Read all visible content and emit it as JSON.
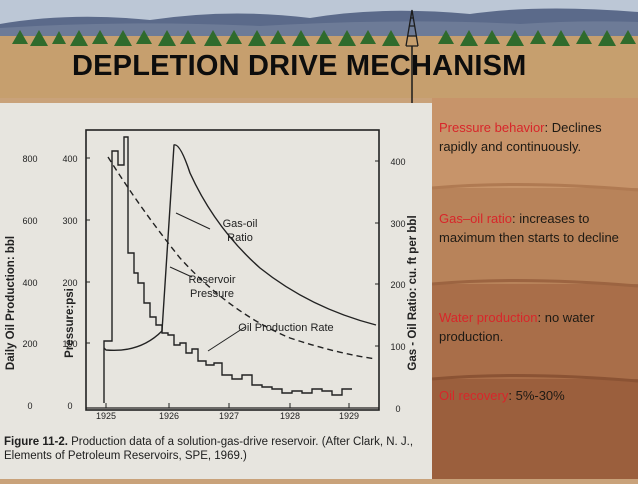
{
  "slide": {
    "title": "DEPLETION DRIVE MECHANISM",
    "colors": {
      "sky": "#bcc7d6",
      "background": "#c9a27a",
      "key_text": "#d8262a",
      "body_text": "#1e1a14"
    }
  },
  "figure": {
    "caption_label": "Figure 11-2.",
    "caption_text": "Production data of a solution-gas-drive reservoir. (After Clark, N. J., Elements of Petroleum Reservoirs, SPE, 1969.)",
    "left_outer_axis_label": "Daily Oil Production: bbl",
    "left_inner_axis_label": "Pressure:psi",
    "right_axis_label": "Gas - Oil Ratio: cu. ft per bbl",
    "curve_labels": {
      "gor": [
        "Gas-oil",
        "Ratio"
      ],
      "pressure": [
        "Reservoir",
        "Pressure"
      ],
      "oil": "Oil Production Rate"
    },
    "left_outer_ticks": [
      "800",
      "600",
      "400",
      "200",
      "0"
    ],
    "left_inner_ticks": [
      "400",
      "300",
      "200",
      "100",
      "0"
    ],
    "right_ticks": [
      "400",
      "300",
      "200",
      "100",
      "0"
    ],
    "x_ticks": [
      "1925",
      "1926",
      "1927",
      "1928",
      "1929"
    ]
  },
  "bullets": [
    {
      "key": "Pressure behavior",
      "text": ": Declines rapidly and continuously."
    },
    {
      "key": "Gas–oil ratio",
      "text": ": increases to maximum then starts to decline"
    },
    {
      "key": "Water production",
      "text": ": no water production."
    },
    {
      "key": "Oil recovery",
      "text": ": 5%-30%"
    }
  ]
}
